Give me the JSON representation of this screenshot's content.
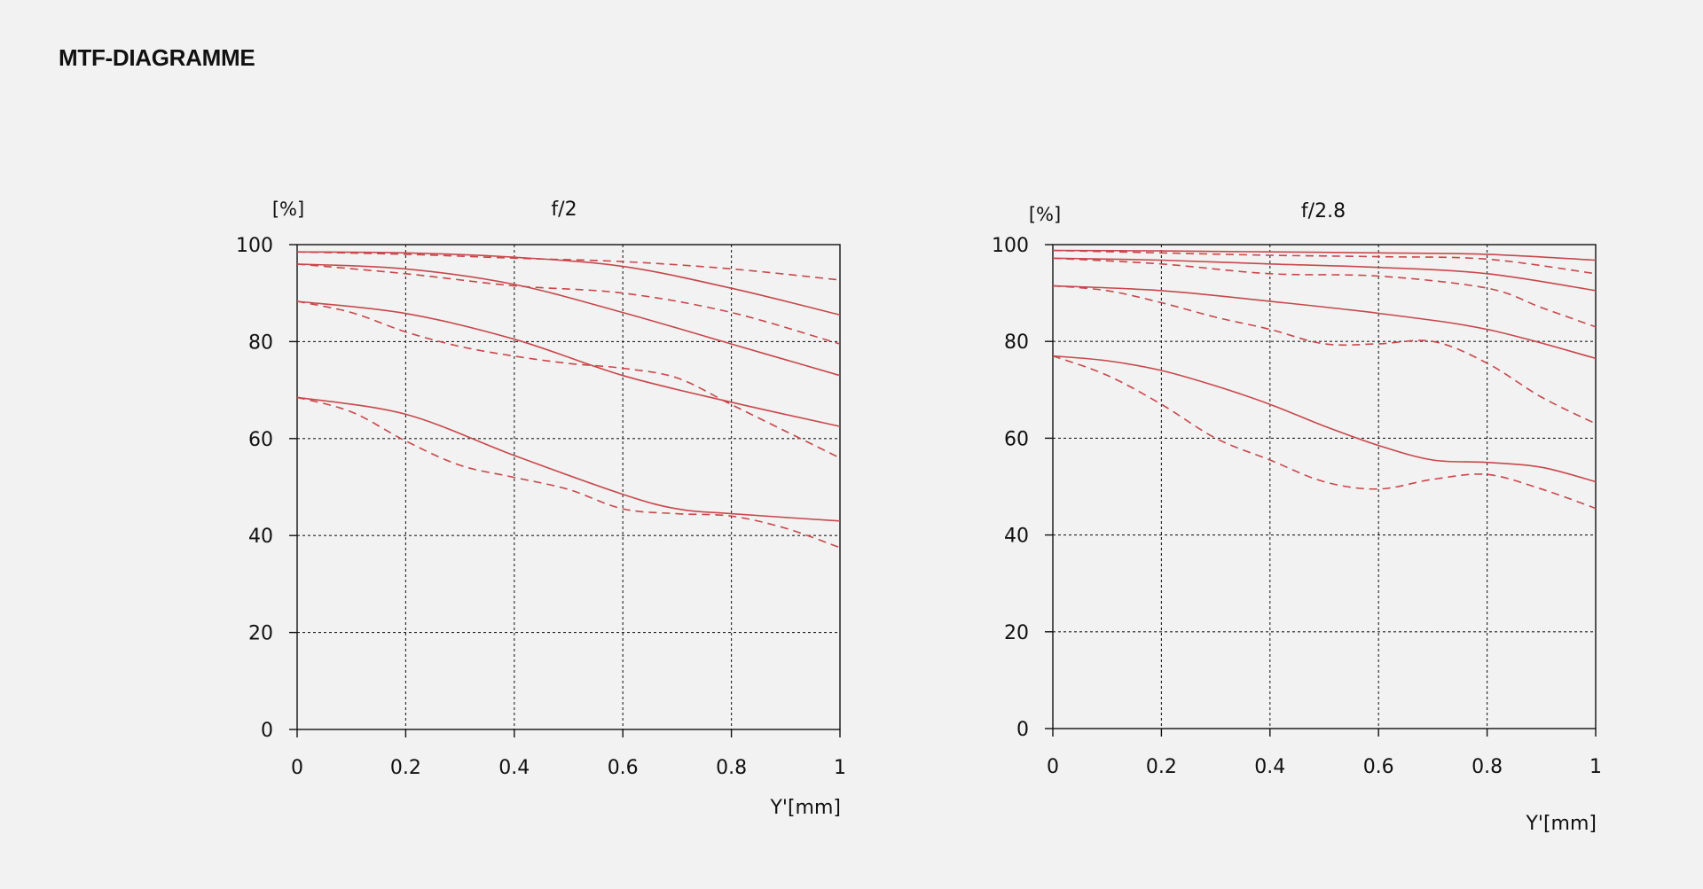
{
  "page": {
    "title": "MTF-DIAGRAMME"
  },
  "colors": {
    "background": "#f2f2f2",
    "curve": "#c9474b",
    "axis": "#111111",
    "grid": "#222222"
  },
  "chart_data": [
    {
      "type": "line",
      "title": "f/2",
      "ylabel": "[%]",
      "xlabel": "Y'[mm]",
      "xlim": [
        0,
        1
      ],
      "ylim": [
        0,
        100
      ],
      "xticks": [
        "0",
        "0.2",
        "0.4",
        "0.6",
        "0.8",
        "1"
      ],
      "yticks": [
        "0",
        "20",
        "40",
        "60",
        "80",
        "100"
      ],
      "grid": true,
      "series": [
        {
          "style": "solid",
          "x": [
            0,
            0.2,
            0.4,
            0.6,
            0.8,
            1.0
          ],
          "y": [
            98.5,
            98.3,
            97.4,
            95.5,
            91.0,
            85.5
          ]
        },
        {
          "style": "dashed",
          "x": [
            0,
            0.2,
            0.4,
            0.6,
            0.8,
            1.0
          ],
          "y": [
            98.5,
            98.0,
            97.2,
            96.5,
            95.0,
            92.7
          ]
        },
        {
          "style": "solid",
          "x": [
            0,
            0.2,
            0.4,
            0.6,
            0.8,
            1.0
          ],
          "y": [
            96.0,
            95.0,
            91.8,
            86.0,
            79.5,
            73.0
          ]
        },
        {
          "style": "dashed",
          "x": [
            0,
            0.2,
            0.4,
            0.6,
            0.8,
            1.0
          ],
          "y": [
            96.0,
            94.0,
            91.5,
            90.0,
            86.0,
            79.5
          ]
        },
        {
          "style": "solid",
          "x": [
            0,
            0.2,
            0.4,
            0.6,
            0.8,
            1.0
          ],
          "y": [
            88.3,
            85.8,
            80.5,
            73.0,
            67.5,
            62.5
          ]
        },
        {
          "style": "dashed",
          "x": [
            0,
            0.1,
            0.2,
            0.3,
            0.4,
            0.5,
            0.6,
            0.7,
            0.8,
            0.9,
            1.0
          ],
          "y": [
            88.3,
            86.0,
            82.0,
            79.0,
            77.0,
            75.5,
            74.5,
            72.5,
            67.0,
            61.5,
            56.0
          ]
        },
        {
          "style": "solid",
          "x": [
            0,
            0.2,
            0.4,
            0.6,
            0.7,
            0.8,
            1.0
          ],
          "y": [
            68.5,
            65.0,
            56.5,
            48.5,
            45.5,
            44.5,
            43.0
          ]
        },
        {
          "style": "dashed",
          "x": [
            0,
            0.1,
            0.2,
            0.3,
            0.4,
            0.5,
            0.6,
            0.7,
            0.8,
            0.9,
            1.0
          ],
          "y": [
            68.5,
            65.5,
            59.5,
            54.5,
            52.0,
            49.5,
            45.5,
            44.5,
            44.0,
            41.5,
            37.5
          ]
        }
      ]
    },
    {
      "type": "line",
      "title": "f/2.8",
      "ylabel": "[%]",
      "xlabel": "Y'[mm]",
      "xlim": [
        0,
        1
      ],
      "ylim": [
        0,
        100
      ],
      "xticks": [
        "0",
        "0.2",
        "0.4",
        "0.6",
        "0.8",
        "1"
      ],
      "yticks": [
        "0",
        "20",
        "40",
        "60",
        "80",
        "100"
      ],
      "grid": true,
      "series": [
        {
          "style": "solid",
          "x": [
            0,
            0.2,
            0.4,
            0.6,
            0.8,
            1.0
          ],
          "y": [
            98.8,
            98.7,
            98.5,
            98.3,
            98.0,
            96.8
          ]
        },
        {
          "style": "dashed",
          "x": [
            0,
            0.2,
            0.4,
            0.6,
            0.8,
            1.0
          ],
          "y": [
            98.8,
            98.3,
            97.8,
            97.5,
            97.0,
            94.0
          ]
        },
        {
          "style": "solid",
          "x": [
            0,
            0.2,
            0.4,
            0.6,
            0.8,
            1.0
          ],
          "y": [
            97.2,
            96.8,
            96.0,
            95.3,
            94.0,
            90.5
          ]
        },
        {
          "style": "dashed",
          "x": [
            0,
            0.2,
            0.4,
            0.6,
            0.8,
            0.9,
            1.0
          ],
          "y": [
            97.2,
            96.0,
            94.0,
            93.5,
            91.0,
            87.0,
            83.0
          ]
        },
        {
          "style": "solid",
          "x": [
            0,
            0.2,
            0.4,
            0.6,
            0.8,
            1.0
          ],
          "y": [
            91.5,
            90.5,
            88.3,
            85.8,
            82.5,
            76.5
          ]
        },
        {
          "style": "dashed",
          "x": [
            0,
            0.1,
            0.2,
            0.3,
            0.4,
            0.5,
            0.6,
            0.7,
            0.8,
            0.9,
            1.0
          ],
          "y": [
            91.5,
            90.5,
            88.0,
            85.0,
            82.5,
            79.5,
            79.5,
            80.0,
            75.5,
            68.5,
            63.0
          ]
        },
        {
          "style": "solid",
          "x": [
            0,
            0.1,
            0.2,
            0.3,
            0.4,
            0.5,
            0.6,
            0.7,
            0.8,
            0.9,
            1.0
          ],
          "y": [
            77.0,
            76.0,
            74.0,
            70.8,
            67.0,
            62.5,
            58.5,
            55.5,
            55.0,
            54.0,
            51.0
          ]
        },
        {
          "style": "dashed",
          "x": [
            0,
            0.1,
            0.2,
            0.3,
            0.4,
            0.5,
            0.6,
            0.7,
            0.8,
            0.9,
            1.0
          ],
          "y": [
            77.0,
            73.0,
            67.0,
            60.0,
            55.5,
            51.0,
            49.5,
            51.5,
            52.5,
            49.5,
            45.5
          ]
        }
      ]
    }
  ]
}
